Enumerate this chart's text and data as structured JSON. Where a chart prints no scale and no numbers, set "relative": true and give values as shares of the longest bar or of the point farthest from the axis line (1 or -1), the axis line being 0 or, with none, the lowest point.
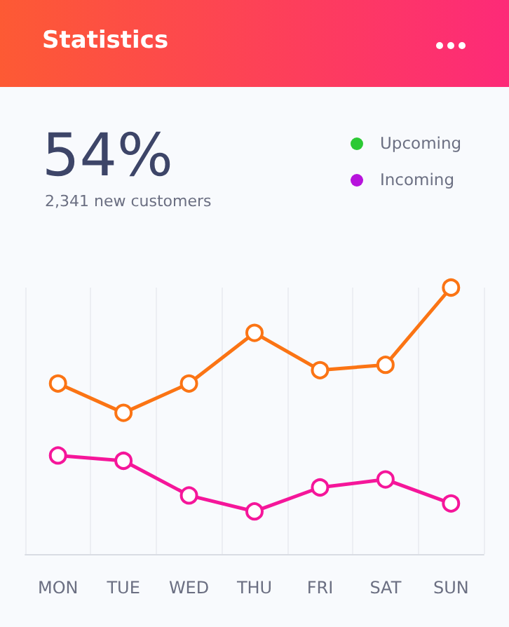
{
  "chart_data": {
    "type": "line",
    "title": "Statistics",
    "subtitle": "2,341 new customers",
    "annotations": [
      "54%",
      "Upcoming",
      "Incoming"
    ],
    "categories": [
      "MON",
      "TUE",
      "WED",
      "THU",
      "FRI",
      "SAT",
      "SUN"
    ],
    "relative": true,
    "series": [
      {
        "color": "#fb7414",
        "values": [
          0.64,
          0.53,
          0.64,
          0.83,
          0.69,
          0.71,
          1
        ]
      },
      {
        "color": "#f5169a",
        "values": [
          0.37,
          0.35,
          0.22,
          0.16,
          0.25,
          0.28,
          0.19
        ]
      }
    ],
    "grid": "x",
    "marker": "circle",
    "line_style": "solid"
  }
}
